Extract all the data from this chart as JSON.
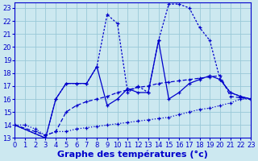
{
  "bg_color": "#cce8f0",
  "grid_color": "#99c8d8",
  "line_color": "#0000cc",
  "xlabel": "Graphe des températures (°c)",
  "xlabel_fontsize": 8,
  "xlim": [
    0,
    23
  ],
  "ylim": [
    13,
    23.4
  ],
  "xticks": [
    0,
    1,
    2,
    3,
    4,
    5,
    6,
    7,
    8,
    9,
    10,
    11,
    12,
    13,
    14,
    15,
    16,
    17,
    18,
    19,
    20,
    21,
    22,
    23
  ],
  "yticks": [
    13,
    14,
    15,
    16,
    17,
    18,
    19,
    20,
    21,
    22,
    23
  ],
  "tick_fontsize": 6.0,
  "s1_x": [
    0,
    1,
    2,
    3,
    4,
    5,
    6,
    7,
    8,
    9,
    10,
    11,
    12,
    13,
    14,
    15,
    16,
    17,
    18,
    19,
    20,
    21,
    22,
    23
  ],
  "s1_y": [
    14,
    14,
    13.7,
    13.2,
    13.5,
    13.5,
    13.7,
    13.8,
    13.9,
    14.0,
    14.1,
    14.2,
    14.3,
    14.4,
    14.5,
    14.6,
    14.8,
    15.0,
    15.2,
    15.3,
    15.5,
    15.7,
    16.0,
    16.0
  ],
  "s2_x": [
    0,
    2,
    3,
    4,
    5,
    6,
    7,
    8,
    9,
    10,
    11,
    12,
    13,
    14,
    15,
    16,
    17,
    18,
    19,
    20,
    21,
    22,
    23
  ],
  "s2_y": [
    14,
    13.5,
    13.2,
    13.5,
    15.0,
    15.5,
    15.8,
    16.0,
    16.2,
    16.5,
    16.7,
    16.9,
    17.0,
    17.2,
    17.3,
    17.4,
    17.5,
    17.6,
    17.7,
    17.8,
    16.2,
    16.1,
    16.0
  ],
  "s3_x": [
    0,
    3,
    4,
    5,
    6,
    7,
    8,
    9,
    10,
    11,
    12,
    13,
    14,
    15,
    16,
    17,
    18,
    19,
    20,
    21,
    22,
    23
  ],
  "s3_y": [
    14,
    13.0,
    16.0,
    17.2,
    17.2,
    17.2,
    18.5,
    15.5,
    16.0,
    16.8,
    16.5,
    16.5,
    20.5,
    16.0,
    16.5,
    17.2,
    17.5,
    17.8,
    17.5,
    16.5,
    16.2,
    16.0
  ],
  "s4_x": [
    0,
    3,
    4,
    5,
    6,
    7,
    8,
    9,
    10,
    11,
    12,
    13,
    14,
    15,
    16,
    17,
    18,
    19,
    20,
    21,
    22,
    23
  ],
  "s4_y": [
    14,
    13.0,
    16.0,
    17.2,
    17.2,
    17.2,
    18.5,
    22.5,
    21.8,
    16.5,
    17.0,
    16.5,
    20.5,
    23.3,
    23.3,
    23.0,
    21.5,
    20.5,
    17.5,
    16.5,
    16.2,
    16.0
  ]
}
